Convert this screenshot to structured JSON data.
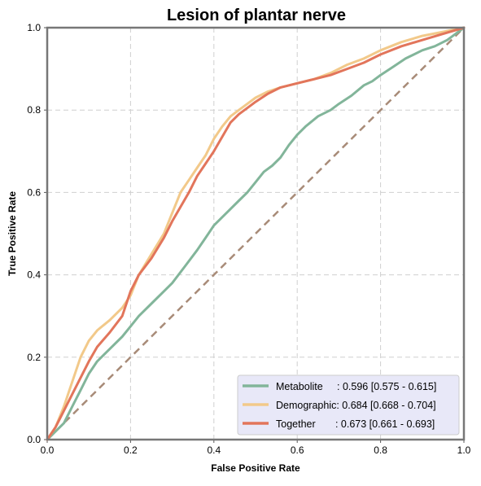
{
  "chart_data": {
    "type": "line",
    "title": "Lesion of plantar nerve",
    "xlabel": "False Positive Rate",
    "ylabel": "True Positive Rate",
    "xlim": [
      0,
      1
    ],
    "ylim": [
      0,
      1
    ],
    "xticks": [
      "0.0",
      "0.2",
      "0.4",
      "0.6",
      "0.8",
      "1.0"
    ],
    "yticks": [
      "0.0",
      "0.2",
      "0.4",
      "0.6",
      "0.8",
      "1.0"
    ],
    "grid": true,
    "legend_position": "lower-right",
    "diagonal": {
      "color": "#a88b78",
      "style": "dashed",
      "x": [
        0,
        1
      ],
      "y": [
        0,
        1
      ]
    },
    "series": [
      {
        "name": "Metabolite",
        "legend_label": "Metabolite     : 0.596 [0.575 - 0.615]",
        "color": "#82b59a",
        "x": [
          0,
          0.02,
          0.04,
          0.06,
          0.08,
          0.1,
          0.12,
          0.15,
          0.18,
          0.2,
          0.22,
          0.25,
          0.28,
          0.3,
          0.33,
          0.36,
          0.38,
          0.4,
          0.43,
          0.46,
          0.48,
          0.5,
          0.52,
          0.54,
          0.56,
          0.58,
          0.6,
          0.62,
          0.65,
          0.68,
          0.7,
          0.73,
          0.76,
          0.78,
          0.8,
          0.83,
          0.86,
          0.88,
          0.9,
          0.93,
          0.96,
          0.98,
          1.0
        ],
        "y": [
          0,
          0.02,
          0.04,
          0.08,
          0.12,
          0.16,
          0.19,
          0.22,
          0.25,
          0.275,
          0.3,
          0.33,
          0.36,
          0.38,
          0.42,
          0.46,
          0.49,
          0.52,
          0.55,
          0.58,
          0.6,
          0.625,
          0.65,
          0.665,
          0.685,
          0.715,
          0.74,
          0.76,
          0.785,
          0.8,
          0.815,
          0.835,
          0.86,
          0.87,
          0.885,
          0.905,
          0.925,
          0.935,
          0.945,
          0.955,
          0.97,
          0.985,
          1.0
        ]
      },
      {
        "name": "Demographic",
        "legend_label": "Demographic: 0.684 [0.668 - 0.704]",
        "color": "#f2c98a",
        "x": [
          0,
          0.02,
          0.04,
          0.06,
          0.08,
          0.1,
          0.12,
          0.15,
          0.18,
          0.2,
          0.22,
          0.25,
          0.28,
          0.3,
          0.32,
          0.34,
          0.36,
          0.38,
          0.4,
          0.42,
          0.44,
          0.46,
          0.48,
          0.5,
          0.53,
          0.56,
          0.6,
          0.64,
          0.68,
          0.72,
          0.76,
          0.8,
          0.85,
          0.9,
          0.95,
          1.0
        ],
        "y": [
          0,
          0.03,
          0.08,
          0.14,
          0.2,
          0.24,
          0.265,
          0.29,
          0.32,
          0.35,
          0.4,
          0.45,
          0.5,
          0.55,
          0.6,
          0.63,
          0.66,
          0.69,
          0.73,
          0.76,
          0.785,
          0.8,
          0.815,
          0.83,
          0.845,
          0.855,
          0.865,
          0.875,
          0.89,
          0.91,
          0.925,
          0.945,
          0.965,
          0.98,
          0.99,
          1.0
        ]
      },
      {
        "name": "Together",
        "legend_label": "Together       : 0.673 [0.661 - 0.693]",
        "color": "#e2755b",
        "x": [
          0,
          0.02,
          0.04,
          0.06,
          0.08,
          0.1,
          0.12,
          0.15,
          0.18,
          0.2,
          0.22,
          0.25,
          0.28,
          0.3,
          0.32,
          0.34,
          0.36,
          0.38,
          0.4,
          0.42,
          0.44,
          0.46,
          0.48,
          0.5,
          0.53,
          0.56,
          0.6,
          0.64,
          0.68,
          0.72,
          0.76,
          0.8,
          0.85,
          0.9,
          0.95,
          1.0
        ],
        "y": [
          0,
          0.03,
          0.07,
          0.11,
          0.15,
          0.19,
          0.225,
          0.26,
          0.3,
          0.36,
          0.4,
          0.44,
          0.49,
          0.53,
          0.565,
          0.6,
          0.64,
          0.67,
          0.7,
          0.735,
          0.77,
          0.79,
          0.805,
          0.82,
          0.84,
          0.855,
          0.865,
          0.875,
          0.885,
          0.9,
          0.915,
          0.935,
          0.955,
          0.97,
          0.985,
          1.0
        ]
      }
    ]
  }
}
